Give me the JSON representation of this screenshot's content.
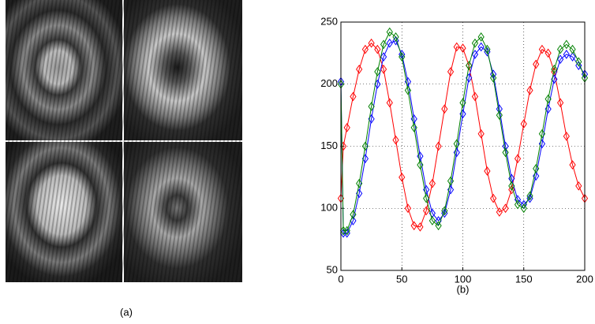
{
  "images": {
    "caption": "(a)"
  },
  "chart_data": {
    "type": "line",
    "xlabel": "(b)",
    "x": [
      0,
      2,
      5,
      10,
      15,
      20,
      25,
      30,
      35,
      40,
      45,
      50,
      55,
      60,
      65,
      70,
      75,
      80,
      85,
      90,
      95,
      100,
      105,
      110,
      115,
      120,
      125,
      130,
      135,
      140,
      145,
      150,
      155,
      160,
      165,
      170,
      175,
      180,
      185,
      190,
      195,
      200
    ],
    "series": [
      {
        "color": "#ff0000",
        "values": [
          108,
          150,
          165,
          190,
          212,
          228,
          233,
          228,
          212,
          185,
          155,
          125,
          100,
          86,
          85,
          98,
          120,
          150,
          180,
          210,
          230,
          229,
          215,
          190,
          160,
          130,
          108,
          97,
          100,
          115,
          140,
          168,
          195,
          216,
          228,
          225,
          210,
          185,
          158,
          135,
          118,
          108
        ]
      },
      {
        "color": "#0000ff",
        "values": [
          202,
          80,
          80,
          90,
          112,
          140,
          172,
          200,
          222,
          233,
          235,
          224,
          202,
          172,
          142,
          115,
          96,
          90,
          96,
          115,
          145,
          176,
          205,
          224,
          230,
          226,
          208,
          180,
          150,
          124,
          107,
          103,
          108,
          126,
          152,
          180,
          204,
          220,
          224,
          222,
          215,
          208
        ]
      },
      {
        "color": "#008000",
        "values": [
          200,
          82,
          82,
          95,
          120,
          150,
          182,
          210,
          232,
          242,
          238,
          222,
          195,
          165,
          135,
          108,
          90,
          86,
          98,
          122,
          152,
          185,
          215,
          233,
          238,
          228,
          205,
          175,
          145,
          118,
          103,
          100,
          110,
          132,
          160,
          188,
          212,
          228,
          232,
          228,
          218,
          205
        ]
      }
    ],
    "xlim": [
      0,
      200
    ],
    "xticks": [
      0,
      50,
      100,
      150,
      200
    ],
    "ylim": [
      50,
      250
    ],
    "yticks": [
      50,
      100,
      150,
      200,
      250
    ],
    "grid": true,
    "marker": "diamond"
  }
}
